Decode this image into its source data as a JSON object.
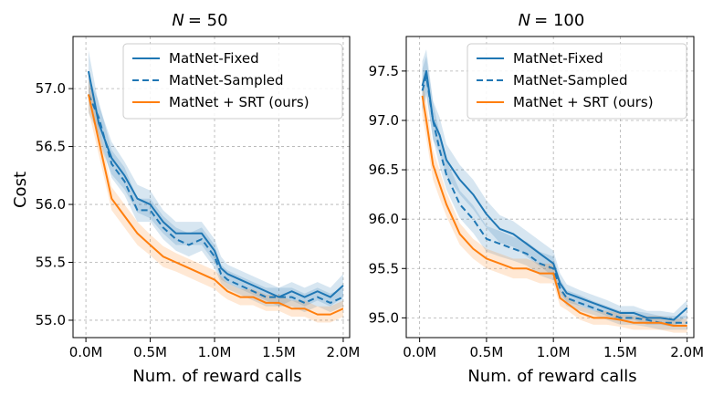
{
  "colors": {
    "fixed": "#1f77b4",
    "sampled": "#1f77b4",
    "srt": "#ff7f0e",
    "grid": "#b0b0b0"
  },
  "legend": {
    "fixed": "MatNet-Fixed",
    "sampled": "MatNet-Sampled",
    "srt": "MatNet + SRT (ours)"
  },
  "chart_data": [
    {
      "type": "line",
      "title_prefix": "N",
      "title_value": "= 50",
      "xlabel": "Num. of reward calls",
      "ylabel": "Cost",
      "xlim": [
        -0.1,
        2.05
      ],
      "ylim": [
        54.85,
        57.45
      ],
      "xticks": [
        0,
        0.5,
        1.0,
        1.5,
        2.0
      ],
      "xtick_labels": [
        "0.0M",
        "0.5M",
        "1.0M",
        "1.5M",
        "2.0M"
      ],
      "yticks": [
        55.0,
        55.5,
        56.0,
        56.5,
        57.0
      ],
      "ytick_labels": [
        "55.0",
        "55.5",
        "56.0",
        "56.5",
        "57.0"
      ],
      "x": [
        0.02,
        0.1,
        0.2,
        0.3,
        0.4,
        0.5,
        0.6,
        0.7,
        0.8,
        0.9,
        1.0,
        1.05,
        1.1,
        1.2,
        1.3,
        1.4,
        1.5,
        1.6,
        1.7,
        1.8,
        1.9,
        2.0
      ],
      "series": [
        {
          "key": "fixed",
          "name": "MatNet-Fixed",
          "style": "solid",
          "values": [
            57.15,
            56.7,
            56.4,
            56.25,
            56.05,
            56.0,
            55.85,
            55.75,
            55.75,
            55.75,
            55.6,
            55.45,
            55.4,
            55.35,
            55.3,
            55.25,
            55.2,
            55.25,
            55.2,
            55.25,
            55.2,
            55.3
          ],
          "band": [
            0.18,
            0.16,
            0.14,
            0.12,
            0.12,
            0.12,
            0.1,
            0.1,
            0.1,
            0.1,
            0.1,
            0.1,
            0.08,
            0.08,
            0.08,
            0.08,
            0.08,
            0.08,
            0.08,
            0.08,
            0.08,
            0.1
          ]
        },
        {
          "key": "sampled",
          "name": "MatNet-Sampled",
          "style": "dashed",
          "values": [
            56.95,
            56.75,
            56.35,
            56.2,
            55.95,
            55.95,
            55.8,
            55.7,
            55.65,
            55.7,
            55.55,
            55.4,
            55.35,
            55.3,
            55.25,
            55.2,
            55.2,
            55.2,
            55.15,
            55.2,
            55.15,
            55.2
          ],
          "band": [
            0.16,
            0.14,
            0.12,
            0.12,
            0.1,
            0.1,
            0.1,
            0.1,
            0.1,
            0.1,
            0.1,
            0.08,
            0.08,
            0.08,
            0.08,
            0.08,
            0.08,
            0.08,
            0.08,
            0.08,
            0.08,
            0.08
          ]
        },
        {
          "key": "srt",
          "name": "MatNet + SRT (ours)",
          "style": "solid",
          "values": [
            56.95,
            56.55,
            56.05,
            55.9,
            55.75,
            55.65,
            55.55,
            55.5,
            55.45,
            55.4,
            55.35,
            55.3,
            55.25,
            55.2,
            55.2,
            55.15,
            55.15,
            55.1,
            55.1,
            55.05,
            55.05,
            55.1
          ],
          "band": [
            0.14,
            0.12,
            0.1,
            0.1,
            0.1,
            0.09,
            0.09,
            0.08,
            0.08,
            0.08,
            0.08,
            0.08,
            0.07,
            0.07,
            0.07,
            0.07,
            0.07,
            0.07,
            0.07,
            0.07,
            0.07,
            0.07
          ]
        }
      ]
    },
    {
      "type": "line",
      "title_prefix": "N",
      "title_value": "= 100",
      "xlabel": "Num. of reward calls",
      "ylabel": "",
      "xlim": [
        -0.1,
        2.05
      ],
      "ylim": [
        94.8,
        97.85
      ],
      "xticks": [
        0,
        0.5,
        1.0,
        1.5,
        2.0
      ],
      "xtick_labels": [
        "0.0M",
        "0.5M",
        "1.0M",
        "1.5M",
        "2.0M"
      ],
      "yticks": [
        95.0,
        95.5,
        96.0,
        96.5,
        97.0,
        97.5
      ],
      "ytick_labels": [
        "95.0",
        "95.5",
        "96.0",
        "96.5",
        "97.0",
        "97.5"
      ],
      "x": [
        0.02,
        0.05,
        0.1,
        0.15,
        0.2,
        0.3,
        0.4,
        0.5,
        0.6,
        0.7,
        0.8,
        0.9,
        1.0,
        1.05,
        1.1,
        1.2,
        1.3,
        1.4,
        1.5,
        1.6,
        1.7,
        1.8,
        1.9,
        2.0
      ],
      "series": [
        {
          "key": "fixed",
          "name": "MatNet-Fixed",
          "style": "solid",
          "values": [
            97.35,
            97.5,
            97.0,
            96.85,
            96.6,
            96.4,
            96.25,
            96.05,
            95.9,
            95.85,
            95.75,
            95.65,
            95.55,
            95.35,
            95.25,
            95.2,
            95.15,
            95.1,
            95.05,
            95.05,
            95.0,
            95.0,
            94.98,
            95.1
          ],
          "band": [
            0.25,
            0.22,
            0.2,
            0.18,
            0.16,
            0.15,
            0.15,
            0.14,
            0.14,
            0.13,
            0.13,
            0.13,
            0.13,
            0.1,
            0.09,
            0.08,
            0.08,
            0.08,
            0.07,
            0.07,
            0.07,
            0.07,
            0.07,
            0.08
          ]
        },
        {
          "key": "sampled",
          "name": "MatNet-Sampled",
          "style": "dashed",
          "values": [
            97.3,
            97.45,
            97.0,
            96.7,
            96.45,
            96.15,
            96.0,
            95.8,
            95.75,
            95.7,
            95.65,
            95.55,
            95.5,
            95.3,
            95.2,
            95.15,
            95.1,
            95.05,
            95.0,
            95.0,
            94.98,
            94.95,
            94.95,
            94.95
          ],
          "band": [
            0.22,
            0.2,
            0.18,
            0.17,
            0.15,
            0.14,
            0.14,
            0.13,
            0.13,
            0.12,
            0.12,
            0.12,
            0.12,
            0.09,
            0.08,
            0.08,
            0.07,
            0.07,
            0.07,
            0.07,
            0.07,
            0.07,
            0.07,
            0.07
          ]
        },
        {
          "key": "srt",
          "name": "MatNet + SRT (ours)",
          "style": "solid",
          "values": [
            97.25,
            97.0,
            96.55,
            96.35,
            96.15,
            95.85,
            95.7,
            95.6,
            95.55,
            95.5,
            95.5,
            95.45,
            95.45,
            95.2,
            95.15,
            95.05,
            95.0,
            95.0,
            94.98,
            94.95,
            94.95,
            94.95,
            94.92,
            94.92
          ],
          "band": [
            0.2,
            0.18,
            0.15,
            0.14,
            0.12,
            0.11,
            0.1,
            0.1,
            0.1,
            0.1,
            0.1,
            0.1,
            0.1,
            0.08,
            0.07,
            0.07,
            0.07,
            0.07,
            0.07,
            0.07,
            0.07,
            0.07,
            0.07,
            0.07
          ]
        }
      ]
    }
  ]
}
